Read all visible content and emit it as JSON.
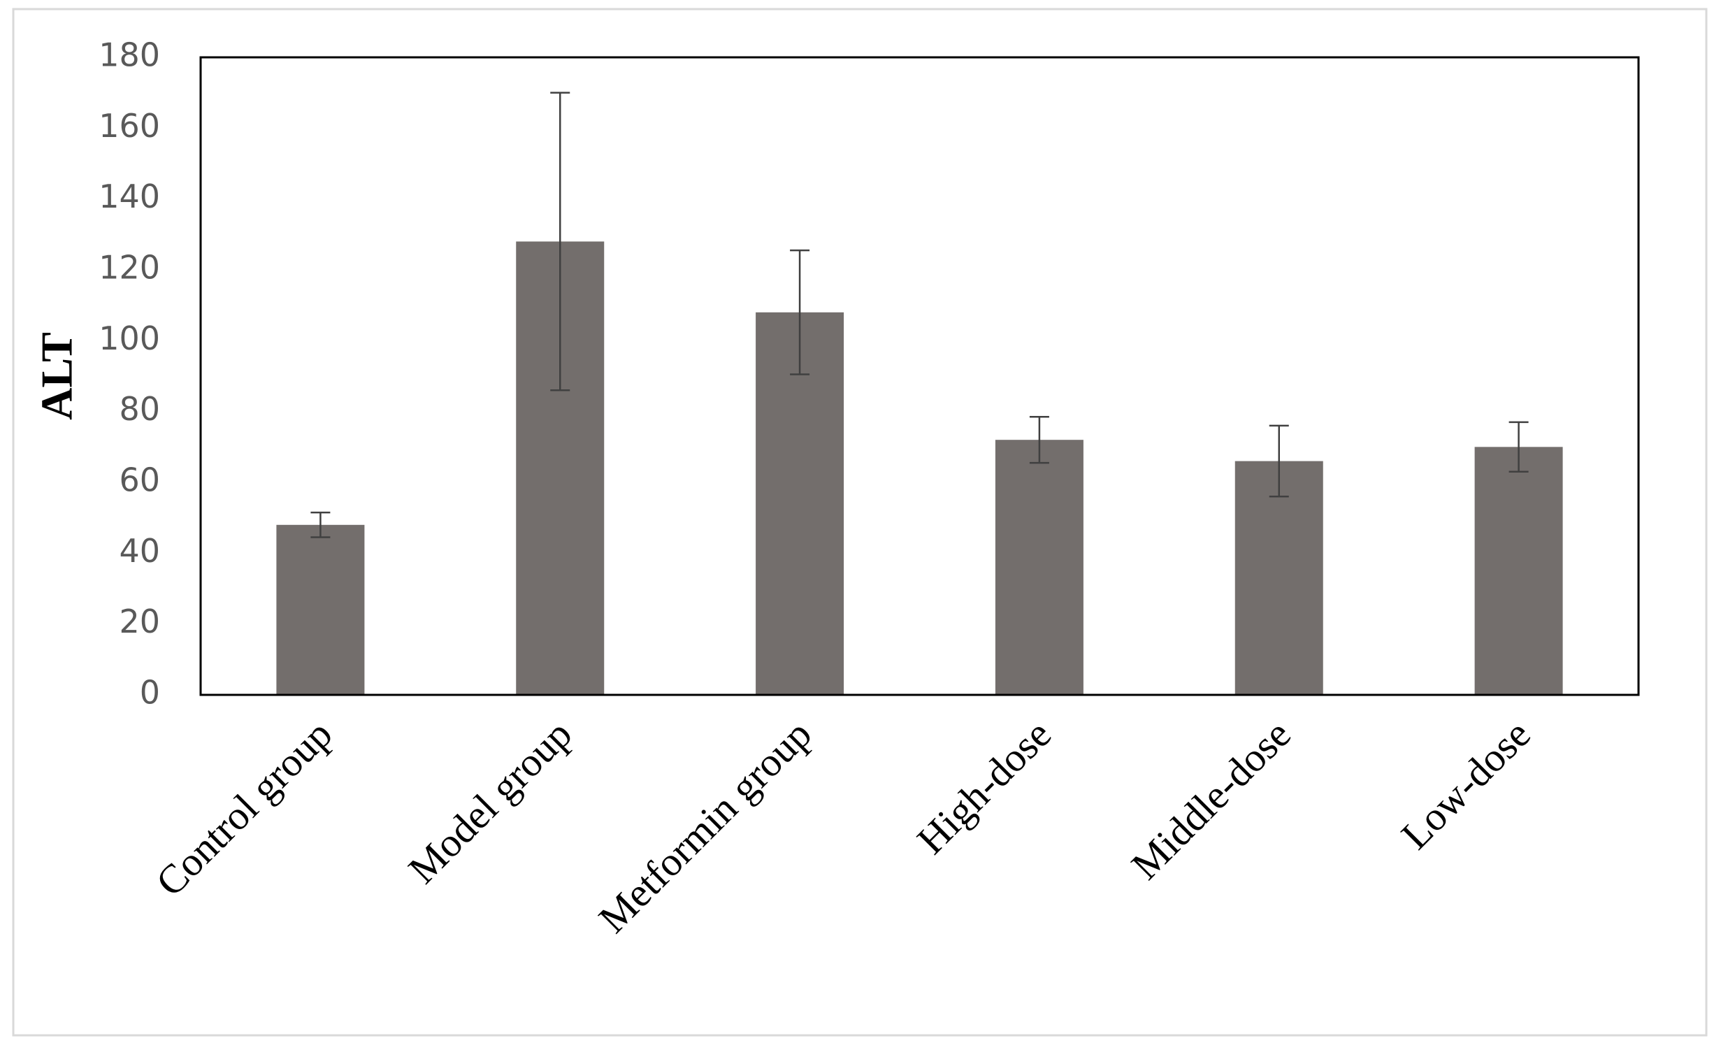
{
  "chart_data": {
    "type": "bar",
    "y_label": "ALT",
    "categories": [
      "Control group",
      "Model group",
      "Metformin group",
      "High-dose",
      "Middle-dose",
      "Low-dose"
    ],
    "values": [
      48,
      128,
      108,
      72,
      66,
      70
    ],
    "errors": [
      3.5,
      42,
      17.5,
      6.5,
      10,
      7
    ],
    "color": "#736e6c",
    "ylim": [
      0,
      180
    ],
    "yticks": [
      0,
      20,
      40,
      60,
      80,
      100,
      120,
      140,
      160,
      180
    ],
    "grid": false
  }
}
